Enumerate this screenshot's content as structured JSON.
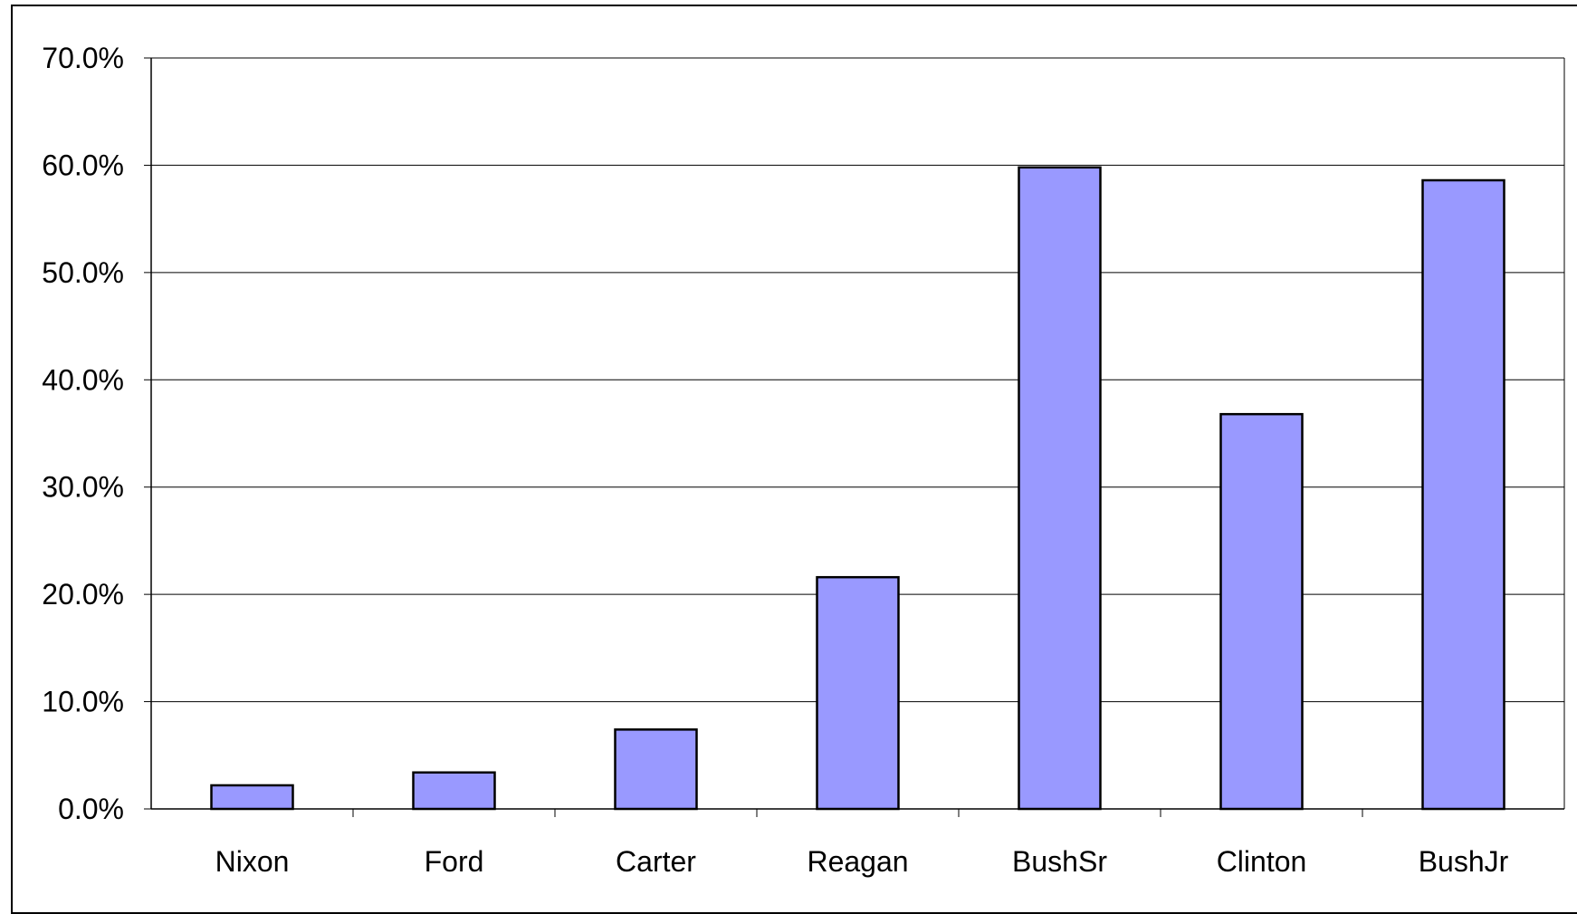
{
  "chart_data": {
    "type": "bar",
    "categories": [
      "Nixon",
      "Ford",
      "Carter",
      "Reagan",
      "BushSr",
      "Clinton",
      "BushJr"
    ],
    "values": [
      2.2,
      3.4,
      7.4,
      21.6,
      59.8,
      36.8,
      58.6
    ],
    "ylim": [
      0,
      70
    ],
    "yticks": [
      "0.0%",
      "10.0%",
      "20.0%",
      "30.0%",
      "40.0%",
      "50.0%",
      "60.0%",
      "70.0%"
    ],
    "grid": true,
    "legend": "none",
    "colors": {
      "bar_fill": "#9999ff",
      "bar_stroke": "#000000",
      "gridline": "#000000",
      "axis": "#000000",
      "background": "#ffffff"
    }
  }
}
